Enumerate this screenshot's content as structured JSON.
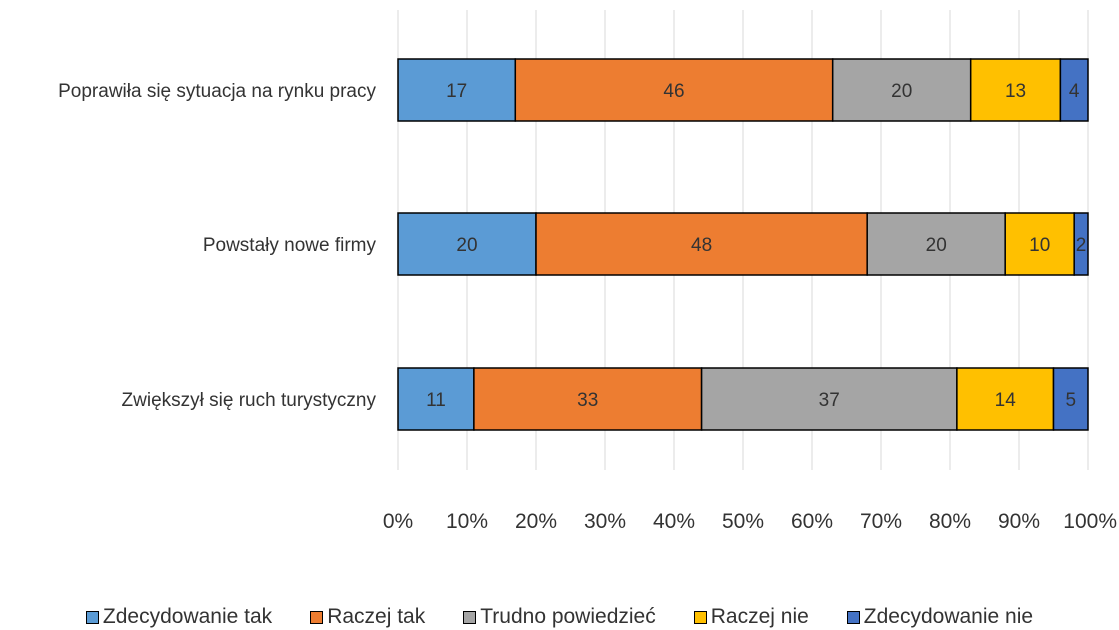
{
  "chart_data": {
    "type": "bar",
    "orientation": "horizontal",
    "stacked": "percent",
    "categories": [
      "Poprawiła się sytuacja na rynku pracy",
      "Powstały nowe firmy",
      "Zwiększył się ruch turystyczny"
    ],
    "series": [
      {
        "name": "Zdecydowanie tak",
        "color": "#5B9BD5",
        "values": [
          17,
          20,
          11
        ]
      },
      {
        "name": "Raczej tak",
        "color": "#ED7D31",
        "values": [
          46,
          48,
          33
        ]
      },
      {
        "name": "Trudno powiedzieć",
        "color": "#A5A5A5",
        "values": [
          20,
          20,
          37
        ]
      },
      {
        "name": "Raczej nie",
        "color": "#FFC000",
        "values": [
          13,
          10,
          14
        ]
      },
      {
        "name": "Zdecydowanie nie",
        "color": "#4472C4",
        "values": [
          4,
          2,
          5
        ]
      }
    ],
    "xticks": [
      "0%",
      "10%",
      "20%",
      "30%",
      "40%",
      "50%",
      "60%",
      "70%",
      "80%",
      "90%",
      "100%"
    ],
    "xlim": [
      0,
      100
    ],
    "grid": "vertical",
    "legend_position": "bottom",
    "title": "",
    "xlabel": "",
    "ylabel": ""
  }
}
